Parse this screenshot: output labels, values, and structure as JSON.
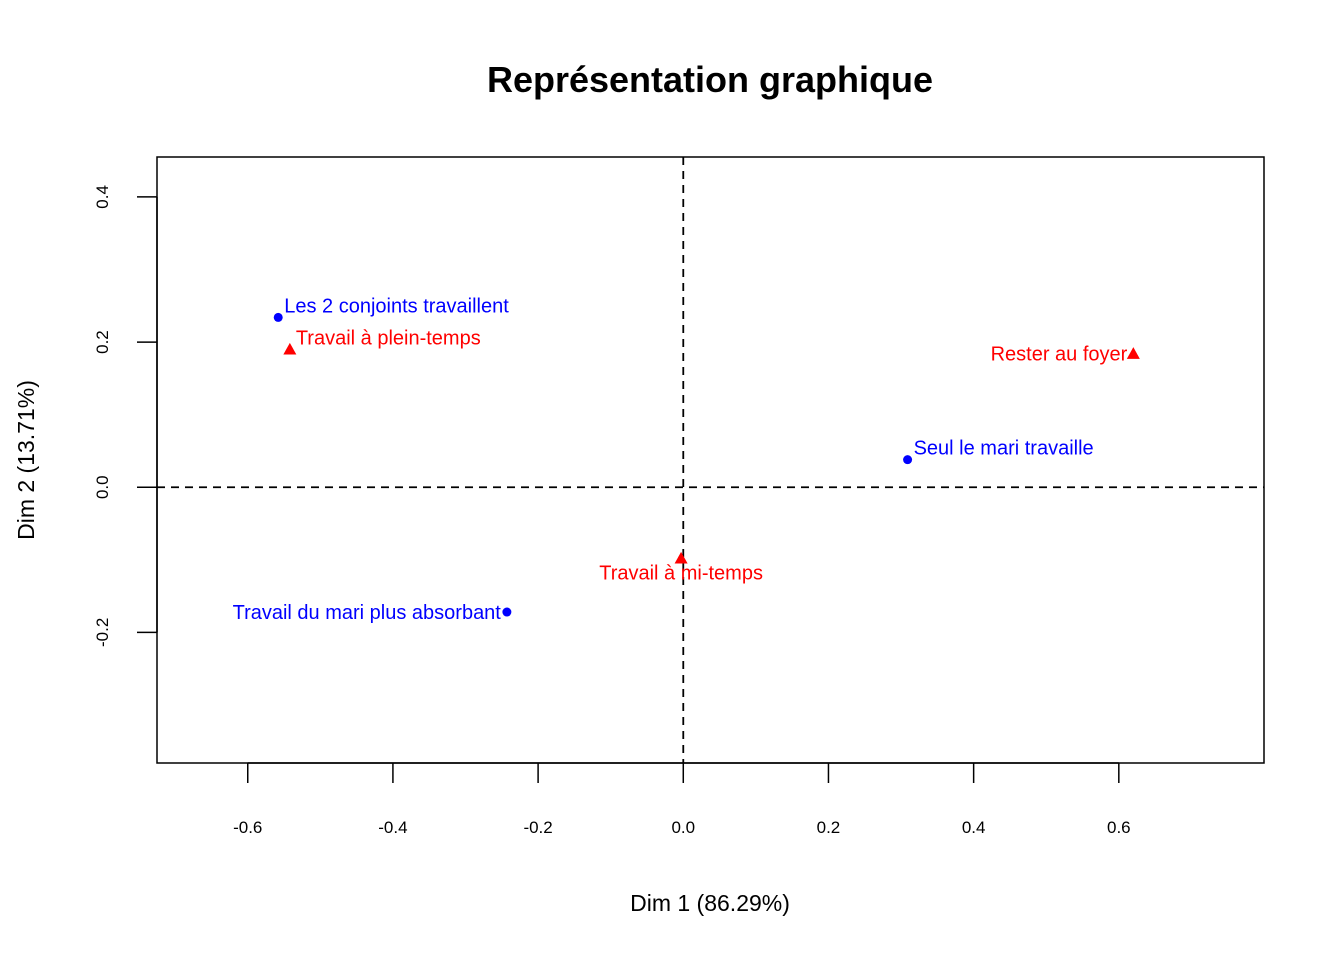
{
  "chart_data": {
    "type": "scatter",
    "title": "Représentation graphique",
    "xlabel": "Dim 1 (86.29%)",
    "ylabel": "Dim 2 (13.71%)",
    "xlim": [
      -0.725,
      0.8
    ],
    "ylim": [
      -0.38,
      0.455
    ],
    "x_ticks": [
      -0.6,
      -0.4,
      -0.2,
      0.0,
      0.2,
      0.4,
      0.6
    ],
    "x_tick_labels": [
      "-0.6",
      "-0.4",
      "-0.2",
      "0.0",
      "0.2",
      "0.4",
      "0.6"
    ],
    "y_ticks": [
      -0.2,
      0.0,
      0.2,
      0.4
    ],
    "y_tick_labels": [
      "-0.2",
      "0.0",
      "0.2",
      "0.4"
    ],
    "grid": false,
    "reference_lines": {
      "x": 0,
      "y": 0,
      "style": "dashed"
    },
    "colors": {
      "rows": "#0000ff",
      "cols": "#ff0000",
      "axes": "#000000"
    },
    "series": [
      {
        "marker": "circle",
        "color": "#0000ff",
        "points": [
          {
            "x": -0.558,
            "y": 0.234,
            "label": "Les 2 conjoints travaillent",
            "label_pos": "right"
          },
          {
            "x": 0.309,
            "y": 0.038,
            "label": "Seul le mari travaille",
            "label_pos": "right"
          },
          {
            "x": -0.243,
            "y": -0.172,
            "label": "Travail du mari plus absorbant",
            "label_pos": "left"
          }
        ]
      },
      {
        "marker": "triangle",
        "color": "#ff0000",
        "points": [
          {
            "x": -0.542,
            "y": 0.19,
            "label": "Travail à plein-temps",
            "label_pos": "right"
          },
          {
            "x": 0.62,
            "y": 0.184,
            "label": "Rester au foyer",
            "label_pos": "left"
          },
          {
            "x": -0.003,
            "y": -0.098,
            "label": "Travail à mi-temps",
            "label_pos": "below"
          }
        ]
      }
    ]
  }
}
